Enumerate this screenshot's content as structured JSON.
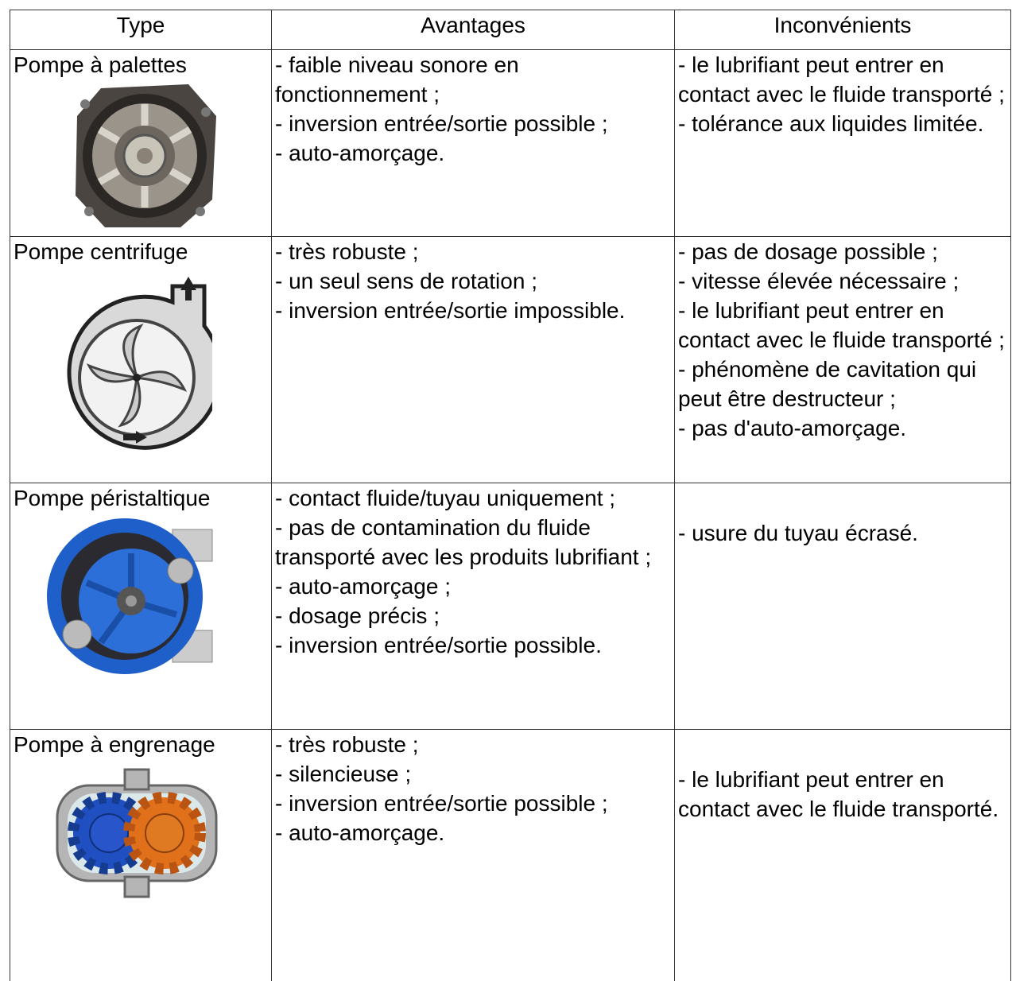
{
  "header": [
    "Type",
    "Avantages",
    "Inconvénients"
  ],
  "rows": [
    {
      "type": "Pompe à palettes",
      "avantages": [
        "- faible niveau sonore en fonctionnement ;",
        "- inversion entrée/sortie possible ;",
        "- auto-amorçage."
      ],
      "inconvenients": [
        "- le lubrifiant peut entrer en contact avec le fluide transporté ;",
        "- tolérance aux liquides limitée."
      ]
    },
    {
      "type": "Pompe centrifuge",
      "avantages": [
        "- très robuste ;",
        "- un seul sens de rotation ;",
        "- inversion entrée/sortie impossible."
      ],
      "inconvenients": [
        "- pas de dosage possible ;",
        "- vitesse élevée nécessaire ;",
        "- le lubrifiant peut entrer en contact avec le fluide transporté ;",
        "- phénomène de cavitation qui peut être destructeur ;",
        "- pas d'auto-amorçage."
      ]
    },
    {
      "type": "Pompe péristaltique",
      "avantages": [
        "- contact fluide/tuyau uniquement ;",
        "- pas de contamination du fluide transporté avec les produits lubrifiant ;",
        "- auto-amorçage ;",
        "- dosage précis ;",
        "- inversion entrée/sortie possible."
      ],
      "inconvenients": [
        "- usure du tuyau écrasé."
      ]
    },
    {
      "type": "Pompe à engrenage",
      "avantages": [
        "- très robuste ;",
        "- silencieuse ;",
        "- inversion entrée/sortie possible ;",
        "- auto-amorçage."
      ],
      "inconvenients": [
        "- le lubrifiant peut entrer en contact avec le fluide transporté."
      ]
    }
  ]
}
